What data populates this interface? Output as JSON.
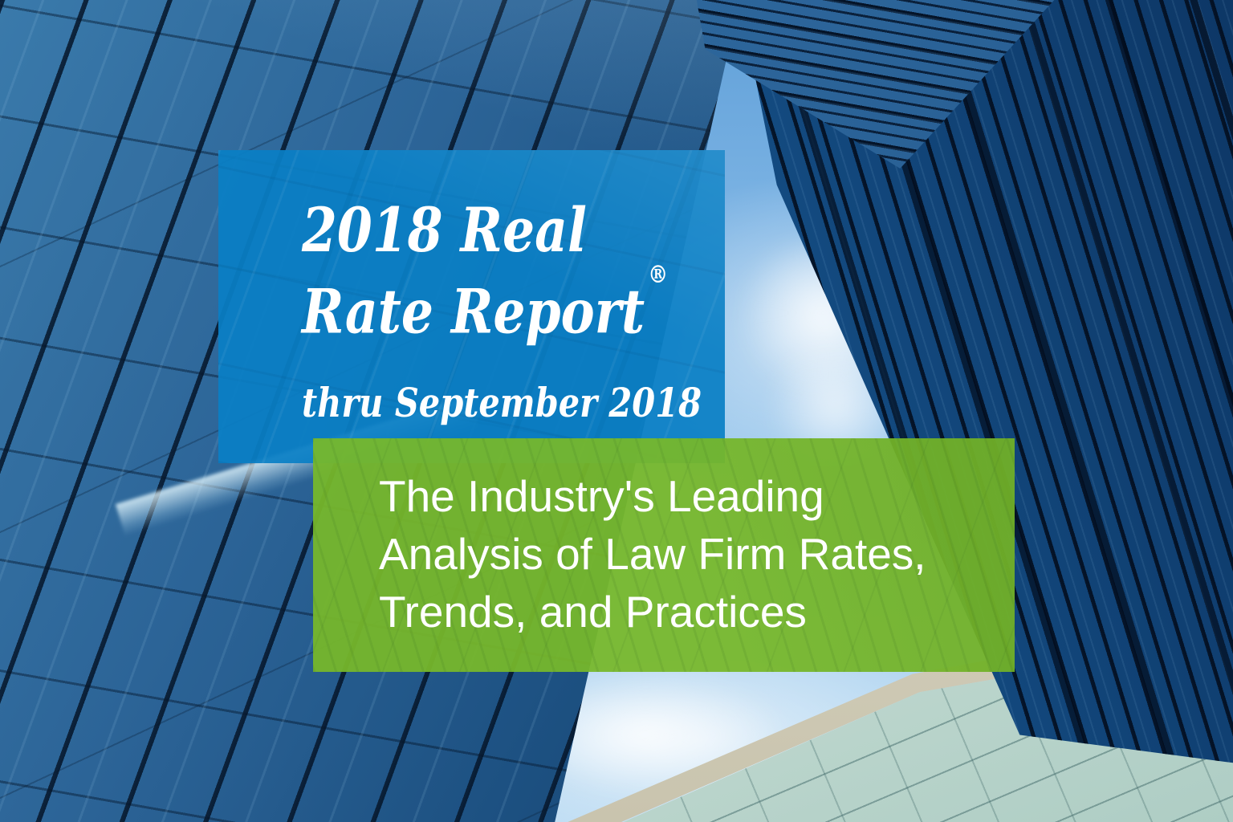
{
  "title_card": {
    "line1": "2018 Real",
    "line2": "Rate Report",
    "registered_mark": "®",
    "subtitle": "thru September 2018",
    "bg_color": "#0d80c5",
    "text_color": "#ffffff"
  },
  "tagline_card": {
    "line1": "The Industry's Leading",
    "line2": "Analysis of Law Firm Rates,",
    "line3": "Trends, and Practices",
    "bg_color": "#77b82b",
    "text_color": "#ffffff"
  },
  "background": {
    "scene": "low-angle view of blue glass skyscrapers against sky",
    "sky_color": "#a9cfee",
    "building_glass_blue": "#1c5080",
    "building_glass_pale": "#d6e6de",
    "parapet_color": "#d5d1c0"
  }
}
